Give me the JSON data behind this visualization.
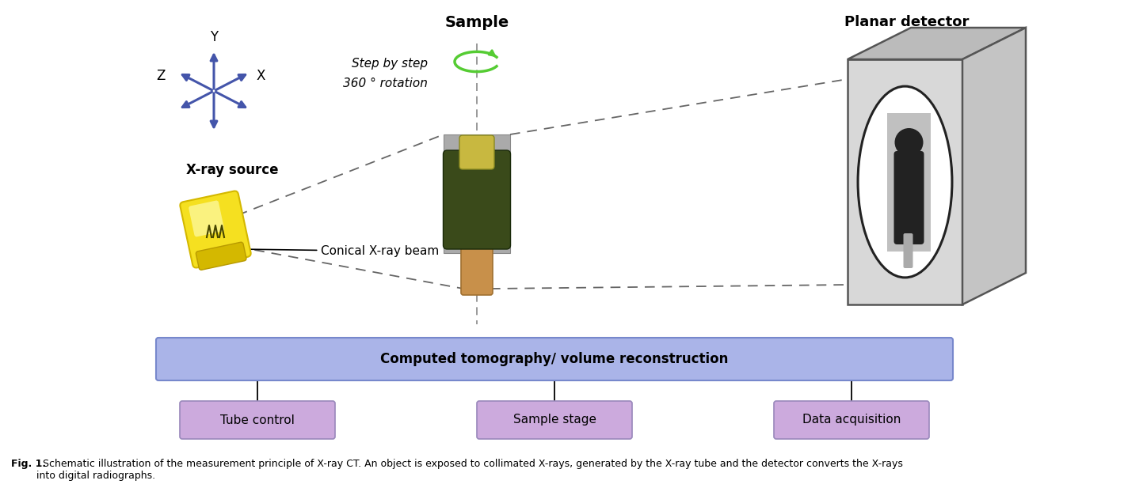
{
  "fig_caption_bold": "Fig. 1.",
  "fig_caption_normal": "  Schematic illustration of the measurement principle of X-ray CT. An object is exposed to collimated X-rays, generated by the X-ray tube and the detector converts the X-rays\ninto digital radiographs.",
  "sample_label": "Sample",
  "detector_label": "Planar detector",
  "xray_label": "X-ray source",
  "conical_label": "Conical X-ray beam",
  "step_label1": "Step by step",
  "step_label2": "360 ° rotation",
  "axis_labels": {
    "x": "X",
    "y": "Y",
    "z": "Z"
  },
  "box_main_label": "Computed tomography/ volume reconstruction",
  "box_main_color": "#aab4e8",
  "box_main_edge": "#7788cc",
  "box_sub_color": "#ccaadd",
  "box_sub_edge": "#9988bb",
  "box_sub_labels": [
    "Tube control",
    "Sample stage",
    "Data acquisition"
  ],
  "background": "#ffffff",
  "blue_color": "#4455aa",
  "green_color": "#55cc33",
  "dashed_color": "#666666",
  "yellow_bright": "#f5e020",
  "yellow_dark": "#d4b800",
  "yellow_shadow": "#b89a00",
  "det_front": "#d8d8d8",
  "det_top": "#bbbbbb",
  "det_right": "#c4c4c4",
  "det_edge": "#555555",
  "sample_green_dark": "#3a4a1a",
  "sample_green_mid": "#5a6a2a",
  "sample_tan": "#c8904a",
  "sample_tan_edge": "#a07030"
}
